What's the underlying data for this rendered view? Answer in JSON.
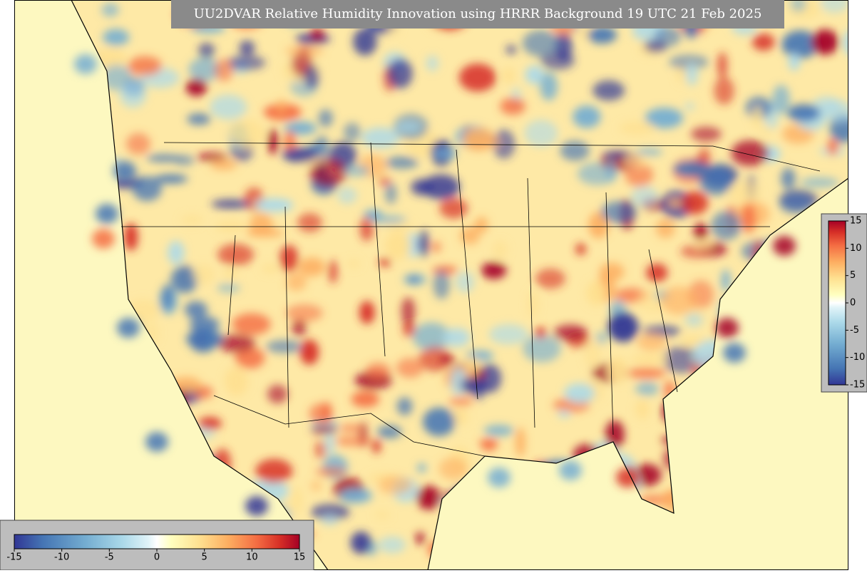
{
  "title": "UU2DVAR Relative Humidity Innovation using HRRR Background 19 UTC 21 Feb 2025",
  "colorbar_horizontal": {
    "lim": [
      -15,
      15
    ],
    "ticks": [
      -15,
      -10,
      -5,
      0,
      5,
      10,
      15
    ]
  },
  "colorbar_vertical": {
    "lim": [
      -15,
      15
    ],
    "ticks": [
      -15,
      -10,
      -5,
      0,
      5,
      10,
      15
    ]
  }
}
